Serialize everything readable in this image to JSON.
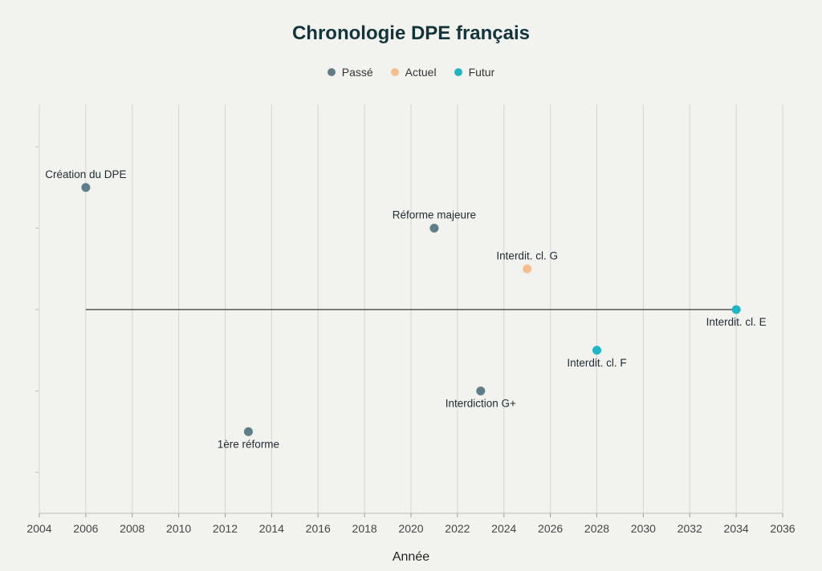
{
  "chart_data": {
    "type": "scatter",
    "title": "Chronologie DPE français",
    "xlabel": "Année",
    "ylabel": "",
    "xlim": [
      2004,
      2036
    ],
    "ylim": [
      -3,
      3
    ],
    "x_ticks": [
      2004,
      2006,
      2008,
      2010,
      2012,
      2014,
      2016,
      2018,
      2020,
      2022,
      2024,
      2026,
      2028,
      2030,
      2032,
      2034,
      2036
    ],
    "grid": "vertical",
    "legend_position": "top-center",
    "series": [
      {
        "name": "Passé",
        "color": "#5e7f88",
        "points": [
          {
            "x": 2006,
            "y": 1.5,
            "label": "Création du DPE",
            "label_position": "above"
          },
          {
            "x": 2013,
            "y": -1.5,
            "label": "1ère réforme",
            "label_position": "below"
          },
          {
            "x": 2021,
            "y": 1.0,
            "label": "Réforme majeure",
            "label_position": "above"
          },
          {
            "x": 2023,
            "y": -1.0,
            "label": "Interdiction G+",
            "label_position": "below"
          }
        ]
      },
      {
        "name": "Actuel",
        "color": "#f7be8d",
        "points": [
          {
            "x": 2025,
            "y": 0.5,
            "label": "Interdit. cl. G",
            "label_position": "above"
          }
        ]
      },
      {
        "name": "Futur",
        "color": "#1fb5c4",
        "points": [
          {
            "x": 2028,
            "y": -0.5,
            "label": "Interdit. cl. F",
            "label_position": "below"
          },
          {
            "x": 2034,
            "y": 0.0,
            "label": "Interdit. cl. E",
            "label_position": "below"
          }
        ]
      }
    ],
    "baseline": {
      "from": 2006,
      "to": 2034,
      "y": 0,
      "color": "#555555"
    }
  }
}
